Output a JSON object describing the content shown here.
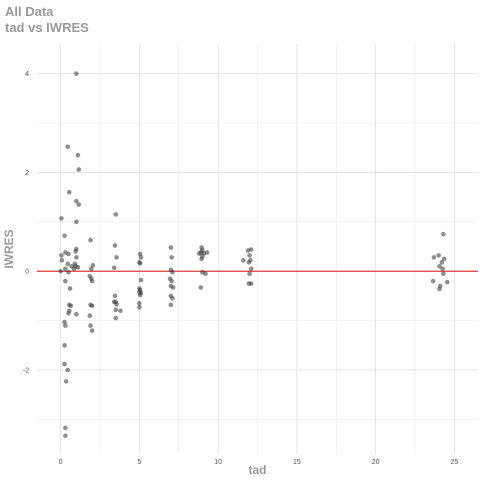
{
  "chart_data": {
    "type": "scatter",
    "title": "All Data",
    "subtitle": "tad vs IWRES",
    "xlabel": "tad",
    "ylabel": "IWRES",
    "xlim": [
      -1.5,
      26.5
    ],
    "ylim": [
      -3.7,
      4.6
    ],
    "xticks": [
      0,
      5,
      10,
      15,
      20,
      25
    ],
    "yticks": [
      -2,
      0,
      2,
      4
    ],
    "xtick_labels": [
      "0",
      "5",
      "10",
      "15",
      "20",
      "25"
    ],
    "ytick_labels": [
      "-2",
      "0",
      "2",
      "4"
    ],
    "reference_line": {
      "y": 0,
      "color": "#e03c3c"
    },
    "grid": true,
    "colors": {
      "points": "#333333",
      "reference": "#e03c3c",
      "grid": "#dedede",
      "text": "#9a9a9a"
    },
    "points": [
      [
        0.0,
        0.0
      ],
      [
        0.05,
        1.07
      ],
      [
        0.05,
        0.32
      ],
      [
        0.08,
        0.22
      ],
      [
        0.25,
        0.72
      ],
      [
        0.3,
        0.38
      ],
      [
        0.3,
        0.05
      ],
      [
        0.3,
        -0.2
      ],
      [
        0.25,
        -1.03
      ],
      [
        0.3,
        -1.1
      ],
      [
        0.25,
        -1.5
      ],
      [
        0.25,
        -1.88
      ],
      [
        0.35,
        -2.23
      ],
      [
        0.3,
        -3.17
      ],
      [
        0.3,
        -3.33
      ],
      [
        0.45,
        2.52
      ],
      [
        0.55,
        1.6
      ],
      [
        0.5,
        0.35
      ],
      [
        0.45,
        0.15
      ],
      [
        0.5,
        -0.02
      ],
      [
        0.6,
        -0.35
      ],
      [
        0.55,
        -0.68
      ],
      [
        0.65,
        -0.7
      ],
      [
        0.55,
        -0.8
      ],
      [
        0.5,
        -0.85
      ],
      [
        0.45,
        -2.0
      ],
      [
        0.7,
        0.1
      ],
      [
        1.0,
        4.0
      ],
      [
        1.1,
        2.35
      ],
      [
        1.15,
        2.06
      ],
      [
        1.0,
        1.42
      ],
      [
        1.15,
        1.35
      ],
      [
        1.0,
        1.0
      ],
      [
        1.0,
        0.45
      ],
      [
        0.95,
        0.4
      ],
      [
        1.0,
        0.28
      ],
      [
        0.9,
        0.15
      ],
      [
        0.95,
        0.1
      ],
      [
        1.1,
        0.08
      ],
      [
        1.0,
        -0.87
      ],
      [
        0.85,
        0.05
      ],
      [
        1.9,
        0.63
      ],
      [
        2.05,
        0.12
      ],
      [
        1.95,
        0.05
      ],
      [
        1.85,
        -0.1
      ],
      [
        1.95,
        -0.15
      ],
      [
        2.0,
        -0.2
      ],
      [
        1.9,
        -0.68
      ],
      [
        2.0,
        -0.7
      ],
      [
        1.85,
        -0.9
      ],
      [
        1.9,
        -1.1
      ],
      [
        2.0,
        -1.2
      ],
      [
        3.5,
        1.15
      ],
      [
        3.45,
        0.52
      ],
      [
        3.55,
        0.28
      ],
      [
        3.4,
        0.07
      ],
      [
        3.45,
        -0.5
      ],
      [
        3.5,
        -0.62
      ],
      [
        3.55,
        -0.67
      ],
      [
        3.4,
        -0.62
      ],
      [
        3.5,
        -0.78
      ],
      [
        3.8,
        -0.8
      ],
      [
        3.5,
        -0.95
      ],
      [
        5.05,
        0.35
      ],
      [
        5.1,
        0.28
      ],
      [
        5.0,
        0.18
      ],
      [
        5.05,
        0.16
      ],
      [
        5.1,
        -0.18
      ],
      [
        5.0,
        -0.35
      ],
      [
        5.05,
        -0.38
      ],
      [
        5.0,
        -0.42
      ],
      [
        5.1,
        -0.44
      ],
      [
        5.05,
        -0.48
      ],
      [
        5.0,
        -0.65
      ],
      [
        5.0,
        -0.73
      ],
      [
        7.0,
        0.48
      ],
      [
        7.05,
        0.28
      ],
      [
        7.0,
        0.03
      ],
      [
        7.1,
        -0.02
      ],
      [
        6.95,
        -0.15
      ],
      [
        7.05,
        -0.2
      ],
      [
        7.0,
        -0.3
      ],
      [
        7.15,
        -0.33
      ],
      [
        7.0,
        -0.5
      ],
      [
        7.1,
        -0.55
      ],
      [
        7.0,
        -0.68
      ],
      [
        8.95,
        0.48
      ],
      [
        9.0,
        0.42
      ],
      [
        8.9,
        0.38
      ],
      [
        9.1,
        0.36
      ],
      [
        8.8,
        0.36
      ],
      [
        9.3,
        0.38
      ],
      [
        9.0,
        0.3
      ],
      [
        8.95,
        0.25
      ],
      [
        9.0,
        -0.02
      ],
      [
        9.2,
        -0.05
      ],
      [
        8.9,
        -0.33
      ],
      [
        11.6,
        0.22
      ],
      [
        11.9,
        0.42
      ],
      [
        12.1,
        0.44
      ],
      [
        12.0,
        0.32
      ],
      [
        12.05,
        0.22
      ],
      [
        11.95,
        0.18
      ],
      [
        12.1,
        0.05
      ],
      [
        12.0,
        -0.05
      ],
      [
        12.1,
        -0.25
      ],
      [
        11.95,
        -0.25
      ],
      [
        23.7,
        0.28
      ],
      [
        24.0,
        0.32
      ],
      [
        24.3,
        0.75
      ],
      [
        24.35,
        0.25
      ],
      [
        24.2,
        0.18
      ],
      [
        24.05,
        0.1
      ],
      [
        24.25,
        0.05
      ],
      [
        24.3,
        -0.05
      ],
      [
        23.65,
        -0.2
      ],
      [
        24.55,
        -0.22
      ],
      [
        24.1,
        -0.3
      ],
      [
        24.05,
        -0.36
      ]
    ]
  }
}
